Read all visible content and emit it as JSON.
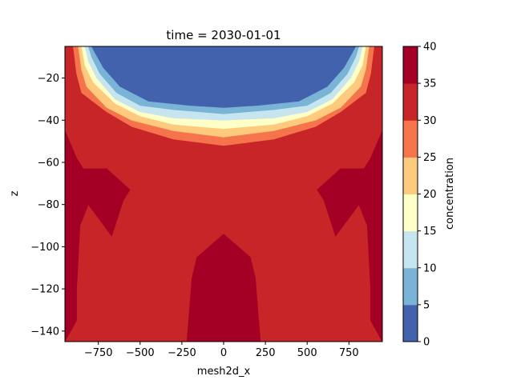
{
  "chart_data": {
    "type": "contourf",
    "title": "time = 2030-01-01",
    "xlabel": "mesh2d_x",
    "ylabel": "z",
    "colorbar_label": "concentration",
    "xlim": [
      -950,
      950
    ],
    "ylim": [
      -145,
      -5
    ],
    "xticks": [
      -750,
      -500,
      -250,
      0,
      250,
      500,
      750
    ],
    "xtick_labels": [
      "−750",
      "−500",
      "−250",
      "0",
      "250",
      "500",
      "750"
    ],
    "yticks": [
      -20,
      -40,
      -60,
      -80,
      -100,
      -120,
      -140
    ],
    "ytick_labels": [
      "−20",
      "−40",
      "−60",
      "−80",
      "−100",
      "−120",
      "−140"
    ],
    "levels": [
      0,
      5,
      10,
      15,
      20,
      25,
      30,
      35,
      40
    ],
    "level_labels": [
      "0",
      "5",
      "10",
      "15",
      "20",
      "25",
      "30",
      "35",
      "40"
    ],
    "band_colors": [
      "#4262ad",
      "#79b3d6",
      "#c7e5ef",
      "#ffffc8",
      "#fdca7e",
      "#f5744b",
      "#c82528",
      "#a40026"
    ],
    "regions": [
      {
        "name": "band-30-35",
        "color_index": 6,
        "points": [
          [
            -950,
            -5
          ],
          [
            950,
            -5
          ],
          [
            950,
            -145
          ],
          [
            -950,
            -145
          ]
        ]
      },
      {
        "name": "band-35-40-left-edge",
        "color_index": 7,
        "points": [
          [
            -950,
            -45
          ],
          [
            -880,
            -58
          ],
          [
            -840,
            -63
          ],
          [
            -700,
            -63
          ],
          [
            -560,
            -73
          ],
          [
            -600,
            -78
          ],
          [
            -670,
            -95
          ],
          [
            -810,
            -80
          ],
          [
            -860,
            -90
          ],
          [
            -880,
            -120
          ],
          [
            -880,
            -135
          ],
          [
            -950,
            -145
          ]
        ]
      },
      {
        "name": "band-35-40-right-edge",
        "color_index": 7,
        "points": [
          [
            950,
            -45
          ],
          [
            880,
            -58
          ],
          [
            840,
            -63
          ],
          [
            700,
            -63
          ],
          [
            560,
            -73
          ],
          [
            600,
            -78
          ],
          [
            670,
            -95
          ],
          [
            810,
            -80
          ],
          [
            860,
            -90
          ],
          [
            880,
            -120
          ],
          [
            880,
            -135
          ],
          [
            950,
            -145
          ]
        ]
      },
      {
        "name": "band-35-40-bottom-center",
        "color_index": 7,
        "points": [
          [
            -220,
            -145
          ],
          [
            -190,
            -115
          ],
          [
            -160,
            -105
          ],
          [
            0,
            -94
          ],
          [
            160,
            -105
          ],
          [
            190,
            -115
          ],
          [
            220,
            -145
          ]
        ]
      },
      {
        "name": "band-25-30",
        "color_index": 5,
        "points": [
          [
            -900,
            -5
          ],
          [
            -880,
            -18
          ],
          [
            -850,
            -27
          ],
          [
            -700,
            -36
          ],
          [
            -550,
            -43
          ],
          [
            -300,
            -49
          ],
          [
            0,
            -52
          ],
          [
            300,
            -49
          ],
          [
            550,
            -43
          ],
          [
            700,
            -36
          ],
          [
            850,
            -27
          ],
          [
            880,
            -18
          ],
          [
            900,
            -5
          ]
        ]
      },
      {
        "name": "band-20-25",
        "color_index": 4,
        "points": [
          [
            -870,
            -5
          ],
          [
            -850,
            -16
          ],
          [
            -820,
            -24
          ],
          [
            -700,
            -34
          ],
          [
            -550,
            -40
          ],
          [
            -300,
            -45
          ],
          [
            0,
            -48
          ],
          [
            300,
            -45
          ],
          [
            550,
            -40
          ],
          [
            700,
            -34
          ],
          [
            820,
            -24
          ],
          [
            850,
            -16
          ],
          [
            870,
            -5
          ]
        ]
      },
      {
        "name": "band-15-20",
        "color_index": 3,
        "points": [
          [
            -850,
            -5
          ],
          [
            -830,
            -14
          ],
          [
            -780,
            -22
          ],
          [
            -650,
            -32
          ],
          [
            -500,
            -38
          ],
          [
            -300,
            -42
          ],
          [
            0,
            -44
          ],
          [
            300,
            -42
          ],
          [
            500,
            -38
          ],
          [
            650,
            -32
          ],
          [
            780,
            -22
          ],
          [
            830,
            -14
          ],
          [
            850,
            -5
          ]
        ]
      },
      {
        "name": "band-10-15",
        "color_index": 2,
        "points": [
          [
            -830,
            -5
          ],
          [
            -810,
            -12
          ],
          [
            -760,
            -20
          ],
          [
            -650,
            -30
          ],
          [
            -500,
            -36
          ],
          [
            -300,
            -39
          ],
          [
            0,
            -40
          ],
          [
            300,
            -39
          ],
          [
            500,
            -36
          ],
          [
            650,
            -30
          ],
          [
            760,
            -20
          ],
          [
            810,
            -12
          ],
          [
            830,
            -5
          ]
        ]
      },
      {
        "name": "band-5-10",
        "color_index": 1,
        "points": [
          [
            -810,
            -5
          ],
          [
            -790,
            -10
          ],
          [
            -740,
            -18
          ],
          [
            -640,
            -27
          ],
          [
            -500,
            -33
          ],
          [
            -300,
            -35
          ],
          [
            0,
            -37
          ],
          [
            300,
            -35
          ],
          [
            500,
            -33
          ],
          [
            640,
            -27
          ],
          [
            740,
            -18
          ],
          [
            790,
            -10
          ],
          [
            810,
            -5
          ]
        ]
      },
      {
        "name": "band-0-5",
        "color_index": 0,
        "points": [
          [
            -790,
            -5
          ],
          [
            -770,
            -8
          ],
          [
            -720,
            -15
          ],
          [
            -620,
            -24
          ],
          [
            -450,
            -31
          ],
          [
            -200,
            -33
          ],
          [
            0,
            -34
          ],
          [
            200,
            -33
          ],
          [
            450,
            -31
          ],
          [
            620,
            -24
          ],
          [
            720,
            -15
          ],
          [
            770,
            -8
          ],
          [
            790,
            -5
          ]
        ]
      }
    ]
  }
}
